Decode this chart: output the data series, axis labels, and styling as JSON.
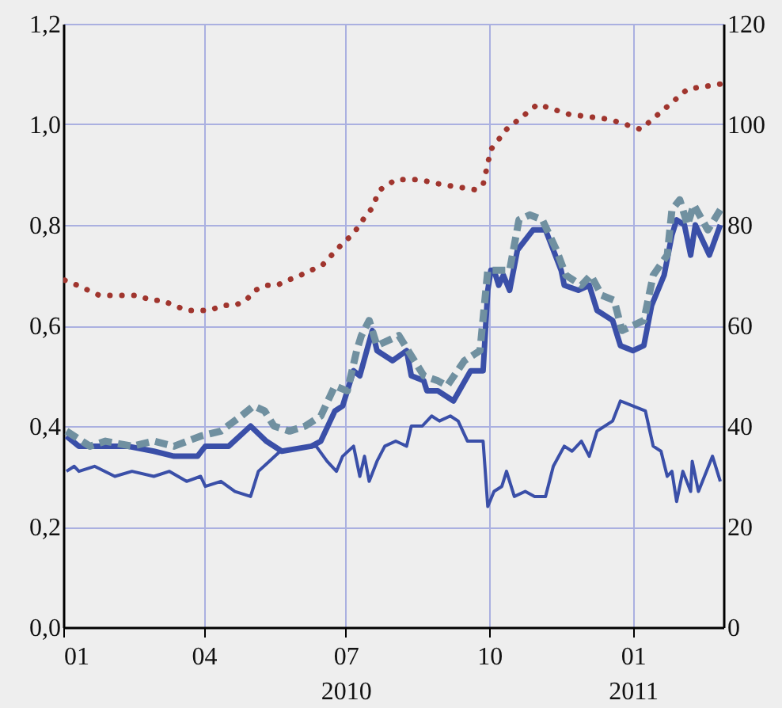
{
  "chart_data": {
    "type": "line",
    "xlim": [
      "2010-01-01",
      "2011-02-28"
    ],
    "xticks": [
      {
        "value": "2010-01-01",
        "label": "01"
      },
      {
        "value": "2010-04-01",
        "label": "04"
      },
      {
        "value": "2010-07-01",
        "label": "07\n2010"
      },
      {
        "value": "2010-10-01",
        "label": "10"
      },
      {
        "value": "2011-01-01",
        "label": "01\n2011"
      }
    ],
    "ylim": [
      0,
      1.2
    ],
    "yticks": [
      {
        "value": 0,
        "label": "0,0"
      },
      {
        "value": 0.2,
        "label": "0,2"
      },
      {
        "value": 0.4,
        "label": "0,4"
      },
      {
        "value": 0.6,
        "label": "0,6"
      },
      {
        "value": 0.8,
        "label": "0,8"
      },
      {
        "value": 1,
        "label": "1,0"
      },
      {
        "value": 1.2,
        "label": "1,2"
      }
    ],
    "y2lim": [
      0,
      120
    ],
    "y2ticks": [
      0,
      20,
      40,
      60,
      80,
      100,
      120
    ],
    "grid": true,
    "marker": "none",
    "series": [
      {
        "color": "#3a4fa8",
        "line_style": "solid",
        "x": [
          "2010-01-03",
          "2010-01-11",
          "2010-01-21",
          "2010-01-31",
          "2010-02-11",
          "2010-02-28",
          "2010-03-13",
          "2010-03-28",
          "2010-04-02",
          "2010-04-17",
          "2010-05-01",
          "2010-05-11",
          "2010-05-21",
          "2010-06-09",
          "2010-06-15",
          "2010-06-24",
          "2010-06-29",
          "2010-07-06",
          "2010-07-10",
          "2010-07-18",
          "2010-07-21",
          "2010-07-31",
          "2010-08-09",
          "2010-08-12",
          "2010-08-20",
          "2010-08-22",
          "2010-08-29",
          "2010-09-08",
          "2010-09-19",
          "2010-09-27",
          "2010-09-30",
          "2010-10-02",
          "2010-10-04",
          "2010-10-07",
          "2010-10-10",
          "2010-10-14",
          "2010-10-19",
          "2010-10-29",
          "2010-11-06",
          "2010-11-16",
          "2010-11-18",
          "2010-11-27",
          "2010-12-04",
          "2010-12-09",
          "2010-12-19",
          "2010-12-24",
          "2011-01-01",
          "2011-01-08",
          "2011-01-13",
          "2011-01-21",
          "2011-01-26",
          "2011-01-29",
          "2011-02-03",
          "2011-02-07",
          "2011-02-10",
          "2011-02-19",
          "2011-02-26"
        ],
        "values": [
          0.38,
          0.36,
          0.36,
          0.36,
          0.36,
          0.35,
          0.34,
          0.34,
          0.36,
          0.36,
          0.4,
          0.37,
          0.35,
          0.36,
          0.37,
          0.43,
          0.44,
          0.51,
          0.5,
          0.59,
          0.55,
          0.53,
          0.55,
          0.5,
          0.49,
          0.47,
          0.47,
          0.45,
          0.51,
          0.51,
          0.67,
          0.71,
          0.71,
          0.68,
          0.7,
          0.67,
          0.75,
          0.79,
          0.79,
          0.71,
          0.68,
          0.67,
          0.68,
          0.63,
          0.61,
          0.56,
          0.55,
          0.56,
          0.64,
          0.7,
          0.78,
          0.81,
          0.8,
          0.74,
          0.8,
          0.74,
          0.8
        ]
      },
      {
        "color": "#7090a0",
        "line_style": "dashed",
        "x": [
          "2010-01-03",
          "2010-01-18",
          "2010-01-28",
          "2010-02-14",
          "2010-02-28",
          "2010-03-13",
          "2010-03-30",
          "2010-04-12",
          "2010-04-25",
          "2010-05-03",
          "2010-05-10",
          "2010-05-16",
          "2010-05-26",
          "2010-06-05",
          "2010-06-15",
          "2010-06-24",
          "2010-07-02",
          "2010-07-08",
          "2010-07-11",
          "2010-07-16",
          "2010-07-21",
          "2010-08-04",
          "2010-08-10",
          "2010-08-20",
          "2010-08-29",
          "2010-09-04",
          "2010-09-15",
          "2010-09-25",
          "2010-09-30",
          "2010-10-02",
          "2010-10-14",
          "2010-10-20",
          "2010-10-27",
          "2010-11-04",
          "2010-11-13",
          "2010-11-19",
          "2010-11-29",
          "2010-12-05",
          "2010-12-12",
          "2010-12-20",
          "2010-12-25",
          "2011-01-01",
          "2011-01-08",
          "2011-01-14",
          "2011-01-23",
          "2011-01-26",
          "2011-01-31",
          "2011-02-05",
          "2011-02-09",
          "2011-02-18",
          "2011-02-26"
        ],
        "values": [
          0.39,
          0.36,
          0.37,
          0.36,
          0.37,
          0.36,
          0.38,
          0.39,
          0.42,
          0.44,
          0.43,
          0.4,
          0.39,
          0.4,
          0.42,
          0.48,
          0.47,
          0.55,
          0.58,
          0.61,
          0.56,
          0.58,
          0.55,
          0.5,
          0.49,
          0.48,
          0.53,
          0.55,
          0.71,
          0.71,
          0.71,
          0.81,
          0.82,
          0.81,
          0.75,
          0.7,
          0.68,
          0.7,
          0.66,
          0.65,
          0.59,
          0.6,
          0.61,
          0.7,
          0.74,
          0.83,
          0.85,
          0.8,
          0.84,
          0.79,
          0.83
        ]
      },
      {
        "color": "#3a4fa8",
        "line_style": "solid",
        "x": [
          "2010-01-03",
          "2010-01-08",
          "2010-01-11",
          "2010-01-21",
          "2010-02-03",
          "2010-02-14",
          "2010-02-28",
          "2010-03-10",
          "2010-03-21",
          "2010-03-30",
          "2010-04-02",
          "2010-04-12",
          "2010-04-21",
          "2010-05-01",
          "2010-05-06",
          "2010-05-13",
          "2010-05-20",
          "2010-06-12",
          "2010-06-19",
          "2010-06-25",
          "2010-06-29",
          "2010-07-06",
          "2010-07-10",
          "2010-07-13",
          "2010-07-16",
          "2010-07-21",
          "2010-07-26",
          "2010-08-02",
          "2010-08-09",
          "2010-08-12",
          "2010-08-19",
          "2010-08-25",
          "2010-08-30",
          "2010-09-06",
          "2010-09-11",
          "2010-09-17",
          "2010-09-27",
          "2010-09-30",
          "2010-10-04",
          "2010-10-09",
          "2010-10-12",
          "2010-10-17",
          "2010-10-24",
          "2010-10-30",
          "2010-11-06",
          "2010-11-11",
          "2010-11-18",
          "2010-11-23",
          "2010-11-29",
          "2010-12-04",
          "2010-12-09",
          "2010-12-19",
          "2010-12-24",
          "2011-01-01",
          "2011-01-09",
          "2011-01-14",
          "2011-01-19",
          "2011-01-23",
          "2011-01-26",
          "2011-01-29",
          "2011-02-02",
          "2011-02-07",
          "2011-02-08",
          "2011-02-12",
          "2011-02-21",
          "2011-02-26"
        ],
        "values": [
          0.31,
          0.32,
          0.31,
          0.32,
          0.3,
          0.31,
          0.3,
          0.31,
          0.29,
          0.3,
          0.28,
          0.29,
          0.27,
          0.26,
          0.31,
          0.33,
          0.35,
          0.36,
          0.33,
          0.31,
          0.34,
          0.36,
          0.3,
          0.34,
          0.29,
          0.33,
          0.36,
          0.37,
          0.36,
          0.4,
          0.4,
          0.42,
          0.41,
          0.42,
          0.41,
          0.37,
          0.37,
          0.24,
          0.27,
          0.28,
          0.31,
          0.26,
          0.27,
          0.26,
          0.26,
          0.32,
          0.36,
          0.35,
          0.37,
          0.34,
          0.39,
          0.41,
          0.45,
          0.44,
          0.43,
          0.36,
          0.35,
          0.3,
          0.31,
          0.25,
          0.31,
          0.27,
          0.33,
          0.27,
          0.34,
          0.29
        ]
      },
      {
        "color": "#a0352e",
        "line_style": "dotted",
        "axis": "y2",
        "x": [
          "2010-01-02",
          "2010-01-10",
          "2010-01-17",
          "2010-01-24",
          "2010-02-01",
          "2010-02-10",
          "2010-02-18",
          "2010-02-26",
          "2010-03-05",
          "2010-03-13",
          "2010-03-21",
          "2010-03-29",
          "2010-04-05",
          "2010-04-13",
          "2010-04-21",
          "2010-04-28",
          "2010-05-04",
          "2010-05-11",
          "2010-05-18",
          "2010-05-25",
          "2010-06-02",
          "2010-06-09",
          "2010-06-16",
          "2010-06-22",
          "2010-06-28",
          "2010-07-05",
          "2010-07-10",
          "2010-07-14",
          "2010-07-17",
          "2010-07-23",
          "2010-08-02",
          "2010-08-17",
          "2010-09-01",
          "2010-09-22",
          "2010-09-27",
          "2010-10-02",
          "2010-10-12",
          "2010-11-01",
          "2010-11-21",
          "2010-12-17",
          "2011-01-06",
          "2011-01-21",
          "2011-02-05",
          "2011-02-26"
        ],
        "values": [
          69,
          68,
          67,
          66,
          66,
          66,
          66,
          65,
          65,
          64,
          63,
          63,
          63,
          64,
          64,
          65,
          67,
          68,
          68,
          69,
          70,
          71,
          72,
          74,
          76,
          78,
          80,
          82,
          83,
          87,
          89,
          89,
          88,
          87,
          88,
          95,
          99,
          104,
          102,
          101,
          99,
          103,
          107,
          108
        ]
      }
    ]
  }
}
